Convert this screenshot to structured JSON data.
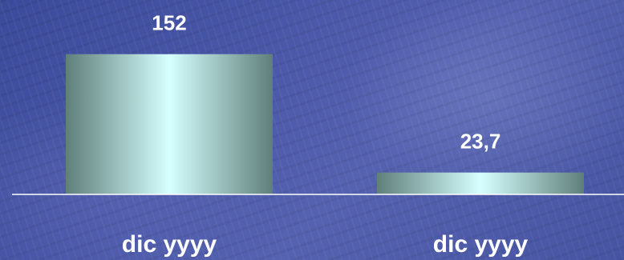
{
  "chart_data": {
    "type": "bar",
    "categories": [
      "dic yyyy",
      "dic yyyy"
    ],
    "values": [
      152,
      23.7
    ],
    "value_labels": [
      "152",
      "23,7"
    ],
    "xlabel": "",
    "ylabel": "",
    "ylim": [
      0,
      176
    ],
    "grid": false,
    "legend": "none",
    "colors": {
      "bar_edge": "#5f7f7a",
      "bar_center": "#d6ffff",
      "text": "#ffffff",
      "axis": "#ffffff"
    }
  }
}
